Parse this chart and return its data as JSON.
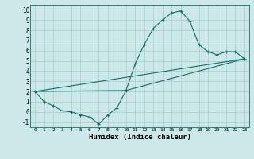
{
  "title": "",
  "xlabel": "Humidex (Indice chaleur)",
  "bg_color": "#cce8e8",
  "grid_color": "#aacccc",
  "line_color": "#1a6b6b",
  "xlim": [
    -0.5,
    23.5
  ],
  "ylim": [
    -1.5,
    10.5
  ],
  "yticks": [
    -1,
    0,
    1,
    2,
    3,
    4,
    5,
    6,
    7,
    8,
    9,
    10
  ],
  "xticks": [
    0,
    1,
    2,
    3,
    4,
    5,
    6,
    7,
    8,
    9,
    10,
    11,
    12,
    13,
    14,
    15,
    16,
    17,
    18,
    19,
    20,
    21,
    22,
    23
  ],
  "line1_x": [
    0,
    1,
    2,
    3,
    4,
    5,
    6,
    7,
    8,
    9,
    10,
    11,
    12,
    13,
    14,
    15,
    16,
    17,
    18,
    19,
    20,
    21,
    22,
    23
  ],
  "line1_y": [
    2.0,
    1.0,
    0.6,
    0.1,
    0.0,
    -0.3,
    -0.5,
    -1.2,
    -0.3,
    0.4,
    2.1,
    4.7,
    6.6,
    8.2,
    9.0,
    9.7,
    9.9,
    8.9,
    6.6,
    5.9,
    5.6,
    5.9,
    5.9,
    5.2
  ],
  "line2_x": [
    0,
    23
  ],
  "line2_y": [
    2.0,
    5.2
  ],
  "line3_x": [
    0,
    10,
    23
  ],
  "line3_y": [
    2.0,
    2.1,
    5.2
  ]
}
